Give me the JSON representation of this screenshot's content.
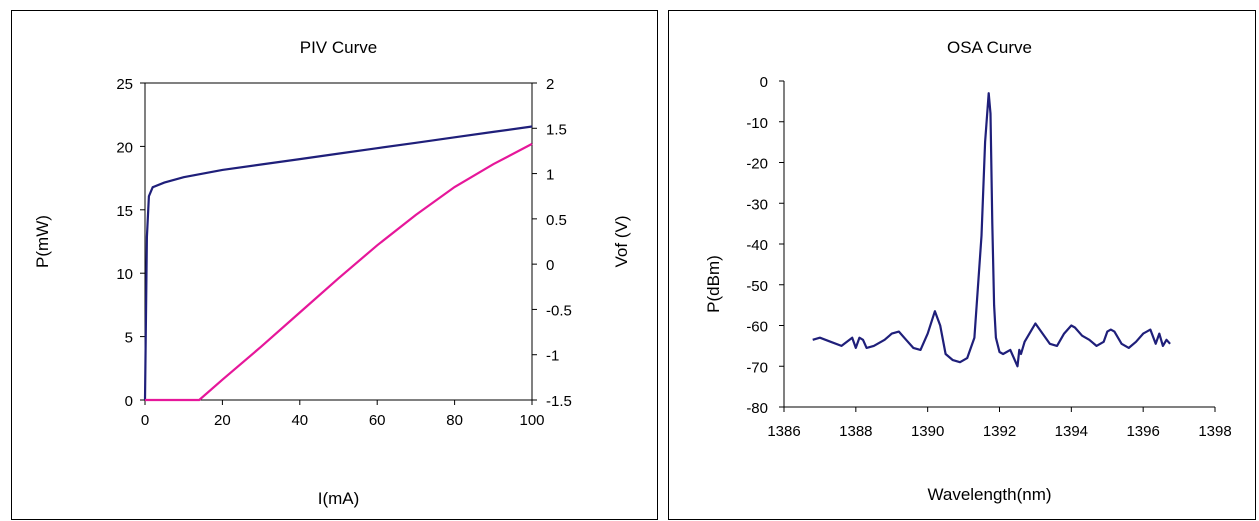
{
  "chart_data": [
    {
      "type": "line",
      "title": "PIV Curve",
      "xlabel": "I(mA)",
      "ylabel": "P(mW)",
      "y2label": "Vof (V)",
      "xlim": [
        0,
        100
      ],
      "ylim": [
        0,
        25
      ],
      "y2lim": [
        -1.5,
        2
      ],
      "xticks": [
        "0",
        "20",
        "40",
        "60",
        "80",
        "100"
      ],
      "yticks": [
        "0",
        "5",
        "10",
        "15",
        "20",
        "25"
      ],
      "y2ticks": [
        "-1.5",
        "-1",
        "-0.5",
        "0",
        "0.5",
        "1",
        "1.5",
        "2"
      ],
      "grid": false,
      "series": [
        {
          "axis": "y2",
          "color": "#1f1f7a",
          "x": [
            0,
            0.5,
            1,
            2,
            5,
            10,
            20,
            30,
            40,
            50,
            60,
            70,
            80,
            90,
            100
          ],
          "y": [
            -1.5,
            0.3,
            0.75,
            0.85,
            0.9,
            0.96,
            1.04,
            1.1,
            1.16,
            1.22,
            1.28,
            1.34,
            1.4,
            1.46,
            1.52
          ]
        },
        {
          "axis": "y",
          "color": "#e6179a",
          "x": [
            0,
            10,
            14,
            20,
            30,
            40,
            50,
            60,
            70,
            80,
            90,
            100
          ],
          "y": [
            0,
            0,
            0,
            1.6,
            4.2,
            6.9,
            9.6,
            12.2,
            14.6,
            16.8,
            18.6,
            20.2
          ]
        }
      ]
    },
    {
      "type": "line",
      "title": "OSA Curve",
      "xlabel": "Wavelength(nm)",
      "ylabel": "P(dBm)",
      "xlim": [
        1386,
        1398
      ],
      "ylim": [
        -80,
        0
      ],
      "xticks": [
        "1386",
        "1388",
        "1390",
        "1392",
        "1394",
        "1396",
        "1398"
      ],
      "yticks": [
        "0",
        "-10",
        "-20",
        "-30",
        "-40",
        "-50",
        "-60",
        "-70",
        "-80"
      ],
      "grid": false,
      "series": [
        {
          "color": "#1f1f7a",
          "x": [
            1386.8,
            1387.0,
            1387.3,
            1387.6,
            1387.9,
            1388.0,
            1388.1,
            1388.2,
            1388.3,
            1388.5,
            1388.8,
            1389.0,
            1389.2,
            1389.4,
            1389.6,
            1389.8,
            1390.0,
            1390.2,
            1390.35,
            1390.5,
            1390.7,
            1390.9,
            1391.1,
            1391.3,
            1391.5,
            1391.6,
            1391.7,
            1391.75,
            1391.8,
            1391.85,
            1391.9,
            1392.0,
            1392.1,
            1392.3,
            1392.5,
            1392.55,
            1392.6,
            1392.7,
            1392.9,
            1393.0,
            1393.2,
            1393.4,
            1393.6,
            1393.8,
            1394.0,
            1394.1,
            1394.3,
            1394.5,
            1394.7,
            1394.9,
            1395.0,
            1395.1,
            1395.2,
            1395.4,
            1395.6,
            1395.8,
            1396.0,
            1396.2,
            1396.35,
            1396.45,
            1396.55,
            1396.65,
            1396.75
          ],
          "y": [
            -63.5,
            -63.0,
            -64.0,
            -65.0,
            -63.0,
            -65.5,
            -63.0,
            -63.5,
            -65.5,
            -65.0,
            -63.5,
            -62.0,
            -61.5,
            -63.5,
            -65.5,
            -66.0,
            -62.0,
            -56.5,
            -60.0,
            -67.0,
            -68.5,
            -69.0,
            -68.0,
            -63.0,
            -38.0,
            -15.0,
            -3.0,
            -8.0,
            -35.0,
            -55.0,
            -63.0,
            -66.5,
            -67.0,
            -66.0,
            -70.0,
            -66.0,
            -67.0,
            -64.0,
            -61.0,
            -59.5,
            -62.0,
            -64.5,
            -65.0,
            -62.0,
            -60.0,
            -60.5,
            -62.5,
            -63.5,
            -65.0,
            -64.0,
            -61.5,
            -61.0,
            -61.5,
            -64.5,
            -65.5,
            -64.0,
            -62.0,
            -61.0,
            -64.5,
            -62.0,
            -65.0,
            -63.5,
            -64.5
          ]
        }
      ]
    }
  ]
}
